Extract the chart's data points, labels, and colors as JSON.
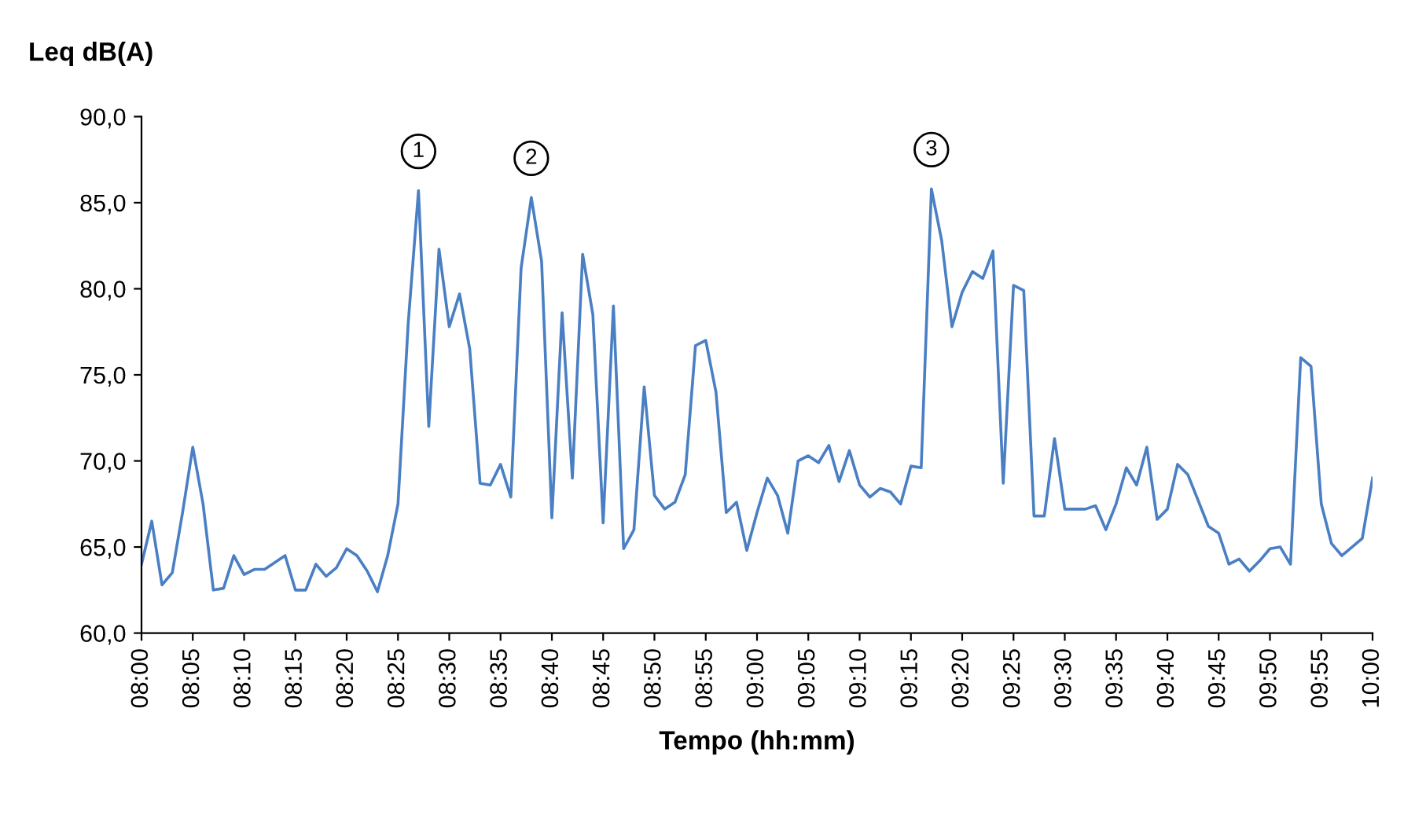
{
  "chart_data": {
    "type": "line",
    "title": "Leq dB(A)",
    "xlabel": "Tempo (hh:mm)",
    "x": [
      8,
      8.0167,
      8.0333,
      8.05,
      8.0667,
      8.0833,
      8.1,
      8.1167,
      8.1333,
      8.15,
      8.1667,
      8.1833,
      8.2,
      8.2167,
      8.2333,
      8.25,
      8.2667,
      8.2833,
      8.3,
      8.3167,
      8.3333,
      8.35,
      8.3667,
      8.3833,
      8.4,
      8.4167,
      8.4333,
      8.45,
      8.4667,
      8.4833,
      8.5,
      8.5167,
      8.5333,
      8.55,
      8.5667,
      8.5833,
      8.6,
      8.6167,
      8.6333,
      8.65,
      8.6667,
      8.6833,
      8.7,
      8.7167,
      8.7333,
      8.75,
      8.7667,
      8.7833,
      8.8,
      8.8167,
      8.8333,
      8.85,
      8.8667,
      8.8833,
      8.9,
      8.9167,
      8.9333,
      8.95,
      8.9667,
      8.9833,
      9,
      9.0167,
      9.0333,
      9.05,
      9.0667,
      9.0833,
      9.1,
      9.1167,
      9.1333,
      9.15,
      9.1667,
      9.1833,
      9.2,
      9.2167,
      9.2333,
      9.25,
      9.2667,
      9.2833,
      9.3,
      9.3167,
      9.3333,
      9.35,
      9.3667,
      9.3833,
      9.4,
      9.4167,
      9.4333,
      9.45,
      9.4667,
      9.4833,
      9.5,
      9.5167,
      9.5333,
      9.55,
      9.5667,
      9.5833,
      9.6,
      9.6167,
      9.6333,
      9.65,
      9.6667,
      9.6833,
      9.7,
      9.7167,
      9.7333,
      9.75,
      9.7667,
      9.7833,
      9.8,
      9.8167,
      9.8333,
      9.85,
      9.8667,
      9.8833,
      9.9,
      9.9167,
      9.9333,
      9.95,
      9.9667,
      9.9833,
      10
    ],
    "series": [
      {
        "color": "#4a7fc4",
        "values": [
          64.0,
          66.5,
          62.8,
          63.5,
          67.0,
          70.8,
          67.5,
          62.5,
          62.6,
          64.5,
          63.4,
          63.7,
          63.7,
          64.1,
          64.5,
          62.5,
          62.5,
          64.0,
          63.3,
          63.8,
          64.9,
          64.5,
          63.6,
          62.4,
          64.5,
          67.5,
          78.0,
          85.7,
          72.0,
          82.3,
          77.8,
          79.7,
          76.5,
          68.7,
          68.6,
          69.8,
          67.9,
          81.2,
          85.3,
          81.6,
          66.7,
          78.6,
          69.0,
          82.0,
          78.5,
          66.4,
          79.0,
          64.9,
          66.0,
          74.3,
          68.0,
          67.2,
          67.6,
          69.2,
          76.7,
          77.0,
          74.0,
          67.0,
          67.6,
          64.8,
          67.0,
          69.0,
          68.0,
          65.8,
          70.0,
          70.3,
          69.9,
          70.9,
          68.8,
          70.6,
          68.6,
          67.9,
          68.4,
          68.2,
          67.5,
          69.7,
          69.6,
          85.8,
          82.8,
          77.8,
          79.8,
          81.0,
          80.6,
          82.2,
          68.7,
          80.2,
          79.9,
          66.8,
          66.8,
          71.3,
          67.2,
          67.2,
          67.2,
          67.4,
          66.0,
          67.5,
          69.6,
          68.6,
          70.8,
          66.6,
          67.2,
          69.8,
          69.2,
          67.7,
          66.2,
          65.8,
          64.0,
          64.3,
          63.6,
          64.2,
          64.9,
          65.0,
          64.0,
          76.0,
          75.5,
          67.5,
          65.2,
          64.5,
          65.0,
          65.5,
          69.0
        ]
      }
    ],
    "xlim": [
      8,
      10
    ],
    "xticks": [
      {
        "value": 8,
        "label": "08:00"
      },
      {
        "value": 8.0833,
        "label": "08:05"
      },
      {
        "value": 8.1667,
        "label": "08:10"
      },
      {
        "value": 8.25,
        "label": "08:15"
      },
      {
        "value": 8.3333,
        "label": "08:20"
      },
      {
        "value": 8.4167,
        "label": "08:25"
      },
      {
        "value": 8.5,
        "label": "08:30"
      },
      {
        "value": 8.5833,
        "label": "08:35"
      },
      {
        "value": 8.6667,
        "label": "08:40"
      },
      {
        "value": 8.75,
        "label": "08:45"
      },
      {
        "value": 8.8333,
        "label": "08:50"
      },
      {
        "value": 8.9167,
        "label": "08:55"
      },
      {
        "value": 9,
        "label": "09:00"
      },
      {
        "value": 9.0833,
        "label": "09:05"
      },
      {
        "value": 9.1667,
        "label": "09:10"
      },
      {
        "value": 9.25,
        "label": "09:15"
      },
      {
        "value": 9.3333,
        "label": "09:20"
      },
      {
        "value": 9.4167,
        "label": "09:25"
      },
      {
        "value": 9.5,
        "label": "09:30"
      },
      {
        "value": 9.5833,
        "label": "09:35"
      },
      {
        "value": 9.6667,
        "label": "09:40"
      },
      {
        "value": 9.75,
        "label": "09:45"
      },
      {
        "value": 9.8333,
        "label": "09:50"
      },
      {
        "value": 9.9167,
        "label": "09:55"
      },
      {
        "value": 10,
        "label": "10:00"
      }
    ],
    "ylim": [
      60,
      90
    ],
    "yticks": [
      {
        "value": 60,
        "label": "60,0"
      },
      {
        "value": 65,
        "label": "65,0"
      },
      {
        "value": 70,
        "label": "70,0"
      },
      {
        "value": 75,
        "label": "75,0"
      },
      {
        "value": 80,
        "label": "80,0"
      },
      {
        "value": 85,
        "label": "85,0"
      },
      {
        "value": 90,
        "label": "90,0"
      }
    ],
    "annotations": [
      {
        "text": "1",
        "x": 8.45,
        "y": 85.7
      },
      {
        "text": "2",
        "x": 8.6333,
        "y": 85.3
      },
      {
        "text": "3",
        "x": 9.2833,
        "y": 85.8
      }
    ],
    "grid": false,
    "marker": "none",
    "line_style": "solid"
  }
}
